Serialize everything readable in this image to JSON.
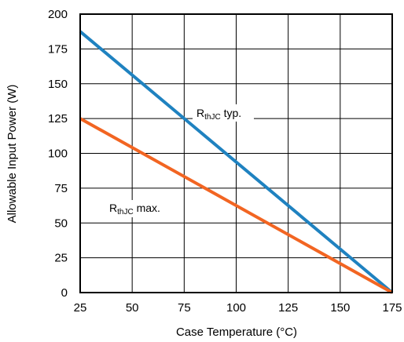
{
  "chart_data": {
    "type": "line",
    "xlabel": "Case Temperature (°C)",
    "ylabel": "Allowable Input Power (W)",
    "xlim": [
      25,
      175
    ],
    "ylim": [
      0,
      200
    ],
    "x_ticks": [
      25,
      50,
      75,
      100,
      125,
      150,
      175
    ],
    "y_ticks": [
      0,
      25,
      50,
      75,
      100,
      125,
      150,
      175,
      200
    ],
    "x_tick_labels": [
      "25",
      "50",
      "75",
      "100",
      "125",
      "150",
      "175"
    ],
    "y_tick_labels": [
      "0",
      "25",
      "50",
      "75",
      "100",
      "125",
      "150",
      "175",
      "200"
    ],
    "grid": true,
    "legend": "none",
    "series": [
      {
        "label_main": "R",
        "label_sub": "thJC",
        "label_suffix": " typ.",
        "color": "#1f82c0",
        "x": [
          25,
          175
        ],
        "y": [
          187.5,
          0
        ]
      },
      {
        "label_main": "R",
        "label_sub": "thJC",
        "label_suffix": " max.",
        "color": "#f26522",
        "x": [
          25,
          175
        ],
        "y": [
          125,
          0
        ]
      }
    ]
  }
}
